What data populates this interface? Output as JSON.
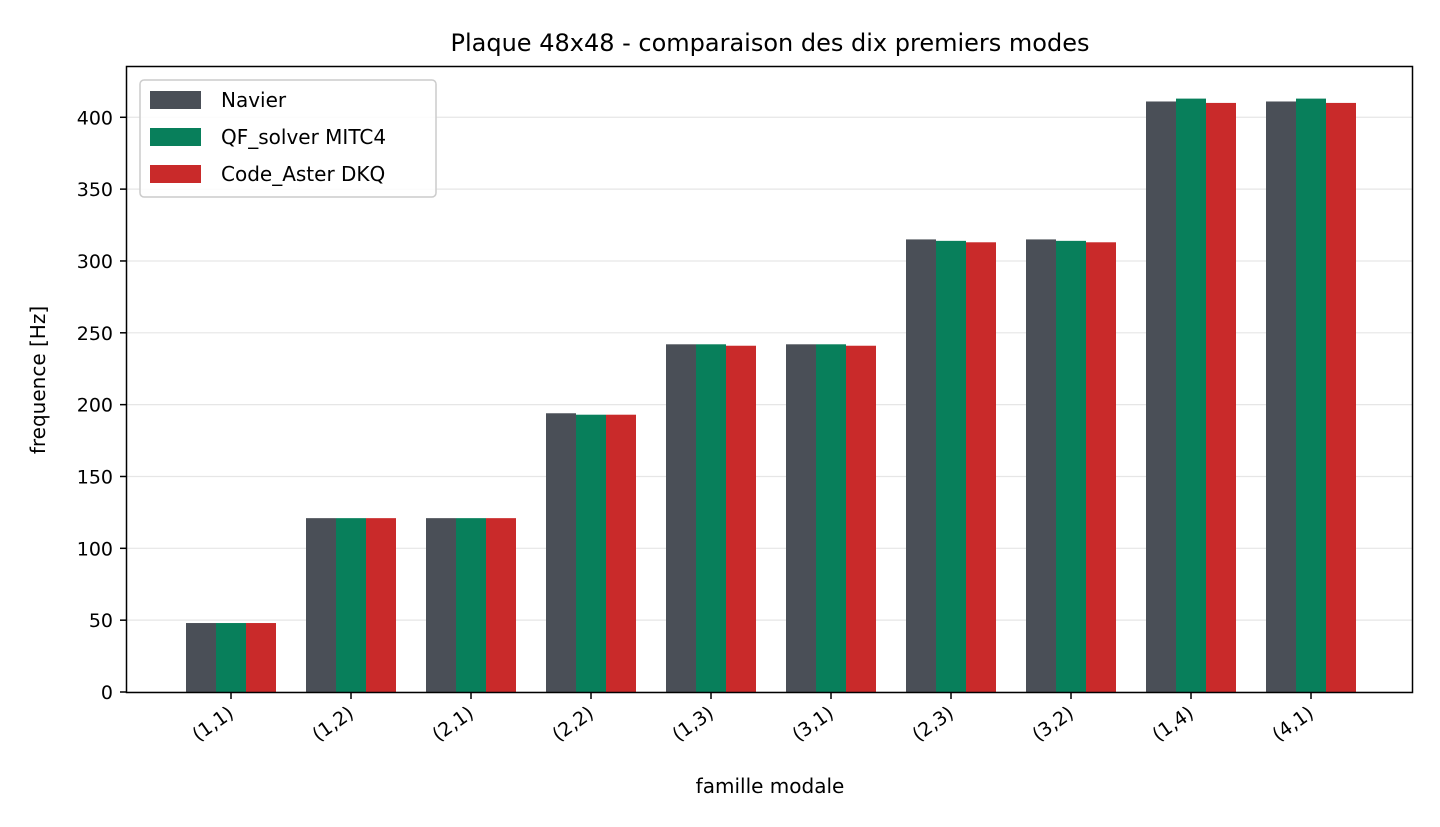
{
  "chart_data": {
    "type": "bar",
    "title": "Plaque 48x48 - comparaison des dix premiers modes",
    "xlabel": "famille modale",
    "ylabel": "frequence [Hz]",
    "categories": [
      "(1,1)",
      "(1,2)",
      "(2,1)",
      "(2,2)",
      "(1,3)",
      "(3,1)",
      "(2,3)",
      "(3,2)",
      "(1,4)",
      "(4,1)"
    ],
    "series": [
      {
        "name": "Navier",
        "color": "#4a4f57",
        "values": [
          48,
          121,
          121,
          194,
          242,
          242,
          315,
          315,
          411,
          411
        ]
      },
      {
        "name": "QF_solver MITC4",
        "color": "#087f5b",
        "values": [
          48,
          121,
          121,
          193,
          242,
          242,
          314,
          314,
          413,
          413
        ]
      },
      {
        "name": "Code_Aster DKQ",
        "color": "#c92a2a",
        "values": [
          48,
          121,
          121,
          193,
          241,
          241,
          313,
          313,
          410,
          410
        ]
      }
    ],
    "ylim": [
      0,
      435
    ],
    "yticks": [
      0,
      50,
      100,
      150,
      200,
      250,
      300,
      350,
      400
    ],
    "grid": "y",
    "legend_position": "top-left"
  }
}
